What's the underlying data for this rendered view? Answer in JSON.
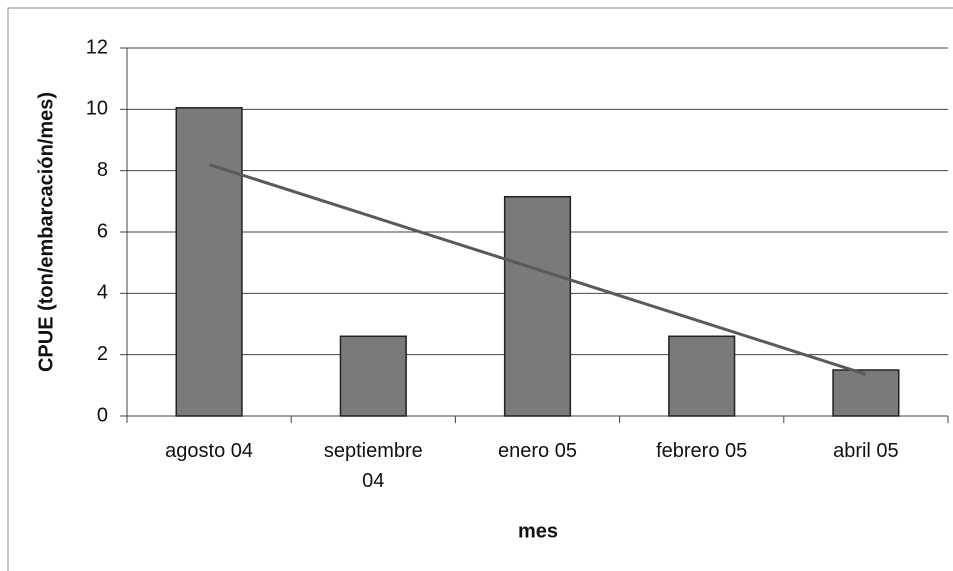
{
  "chart_data": {
    "type": "bar",
    "categories": [
      "agosto 04",
      "septiembre 04",
      "enero 05",
      "febrero 05",
      "abril 05"
    ],
    "values": [
      10.05,
      2.6,
      7.15,
      2.6,
      1.5
    ],
    "color": "#7a7a7a",
    "trend": {
      "values": [
        8.2,
        6.49,
        4.78,
        3.07,
        1.36
      ],
      "color": "#5a5a5a"
    },
    "x_label": "mes",
    "y_label": "CPUE (ton/embarcación/mes)",
    "ylim": [
      0,
      12
    ],
    "yticks": [
      0,
      2,
      4,
      6,
      8,
      10,
      12
    ],
    "grid": true
  }
}
